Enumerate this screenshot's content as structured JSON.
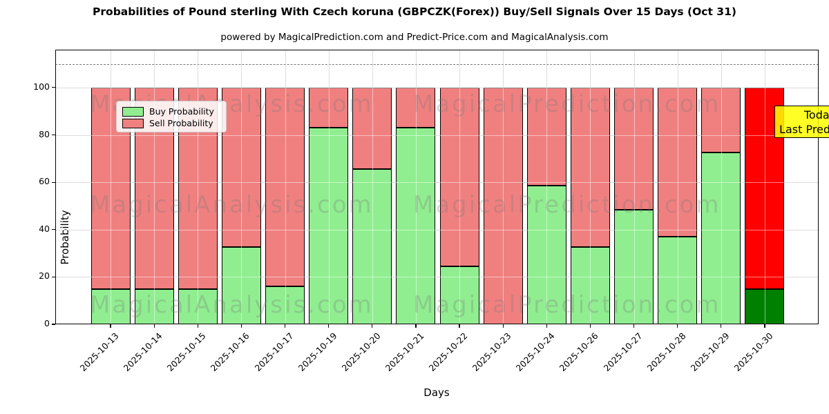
{
  "header": {
    "title": "Probabilities of Pound sterling With Czech koruna (GBPCZK(Forex)) Buy/Sell Signals Over 15 Days (Oct 31)",
    "subtitle": "powered by MagicalPrediction.com and Predict-Price.com and MagicalAnalysis.com"
  },
  "legend": {
    "items": [
      {
        "label": "Buy Probability",
        "color": "#90ee90"
      },
      {
        "label": "Sell Probability",
        "color": "#f08080"
      }
    ]
  },
  "annotation_box": {
    "line1": "Today",
    "line2": "Last Prediction",
    "bg_color": "#ffff00"
  },
  "watermarks": {
    "left_text": "MagicalAnalysis.com",
    "right_text": "MagicalPrediction.com"
  },
  "chart_data": {
    "type": "bar",
    "stacked": true,
    "title": "Probabilities of Pound sterling With Czech koruna (GBPCZK(Forex)) Buy/Sell Signals Over 15 Days (Oct 31)",
    "xlabel": "Days",
    "ylabel": "Probability",
    "categories": [
      "2025-10-13",
      "2025-10-14",
      "2025-10-15",
      "2025-10-16",
      "2025-10-17",
      "2025-10-19",
      "2025-10-20",
      "2025-10-21",
      "2025-10-22",
      "2025-10-23",
      "2025-10-24",
      "2025-10-26",
      "2025-10-27",
      "2025-10-28",
      "2025-10-29",
      "2025-10-30"
    ],
    "series": [
      {
        "name": "Buy Probability",
        "color": "#90ee90",
        "last_bar_color": "#008000",
        "values": [
          15,
          15,
          15,
          32.5,
          16,
          83,
          65.5,
          83,
          24.5,
          0,
          58.5,
          32.5,
          48.5,
          37,
          72.5,
          15
        ]
      },
      {
        "name": "Sell Probability",
        "color": "#f08080",
        "last_bar_color": "#ff0000",
        "values": [
          85,
          85,
          85,
          67.5,
          84,
          17,
          34.5,
          17,
          75.5,
          100,
          41.5,
          67.5,
          51.5,
          63,
          27.5,
          85
        ]
      }
    ],
    "yticks": [
      0,
      20,
      40,
      60,
      80,
      100
    ],
    "ylim": [
      0,
      116
    ],
    "dashed_line_y": 110,
    "grid": true,
    "legend_position": "upper left"
  }
}
